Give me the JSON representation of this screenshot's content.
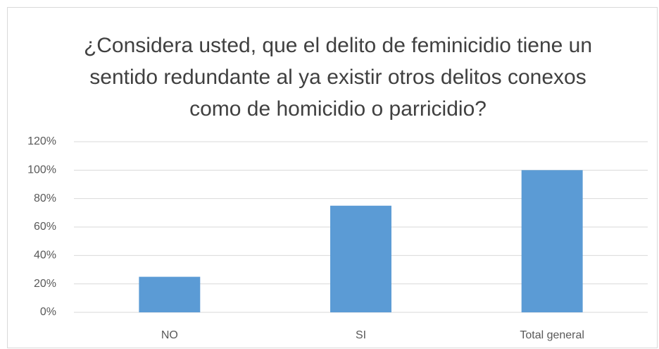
{
  "chart_data": {
    "type": "bar",
    "title": "¿Considera usted, que el delito de feminicidio tiene un sentido redundante al ya existir otros delitos conexos como de homicidio o parricidio?",
    "categories": [
      "NO",
      "SI",
      "Total general"
    ],
    "values": [
      25,
      75,
      100
    ],
    "color": "#5b9bd5",
    "ylim": [
      0,
      120
    ],
    "yticks": [
      {
        "value": 0,
        "label": "0%"
      },
      {
        "value": 20,
        "label": "20%"
      },
      {
        "value": 40,
        "label": "40%"
      },
      {
        "value": 60,
        "label": "60%"
      },
      {
        "value": 80,
        "label": "80%"
      },
      {
        "value": 100,
        "label": "100%"
      },
      {
        "value": 120,
        "label": "120%"
      }
    ],
    "grid": true
  }
}
